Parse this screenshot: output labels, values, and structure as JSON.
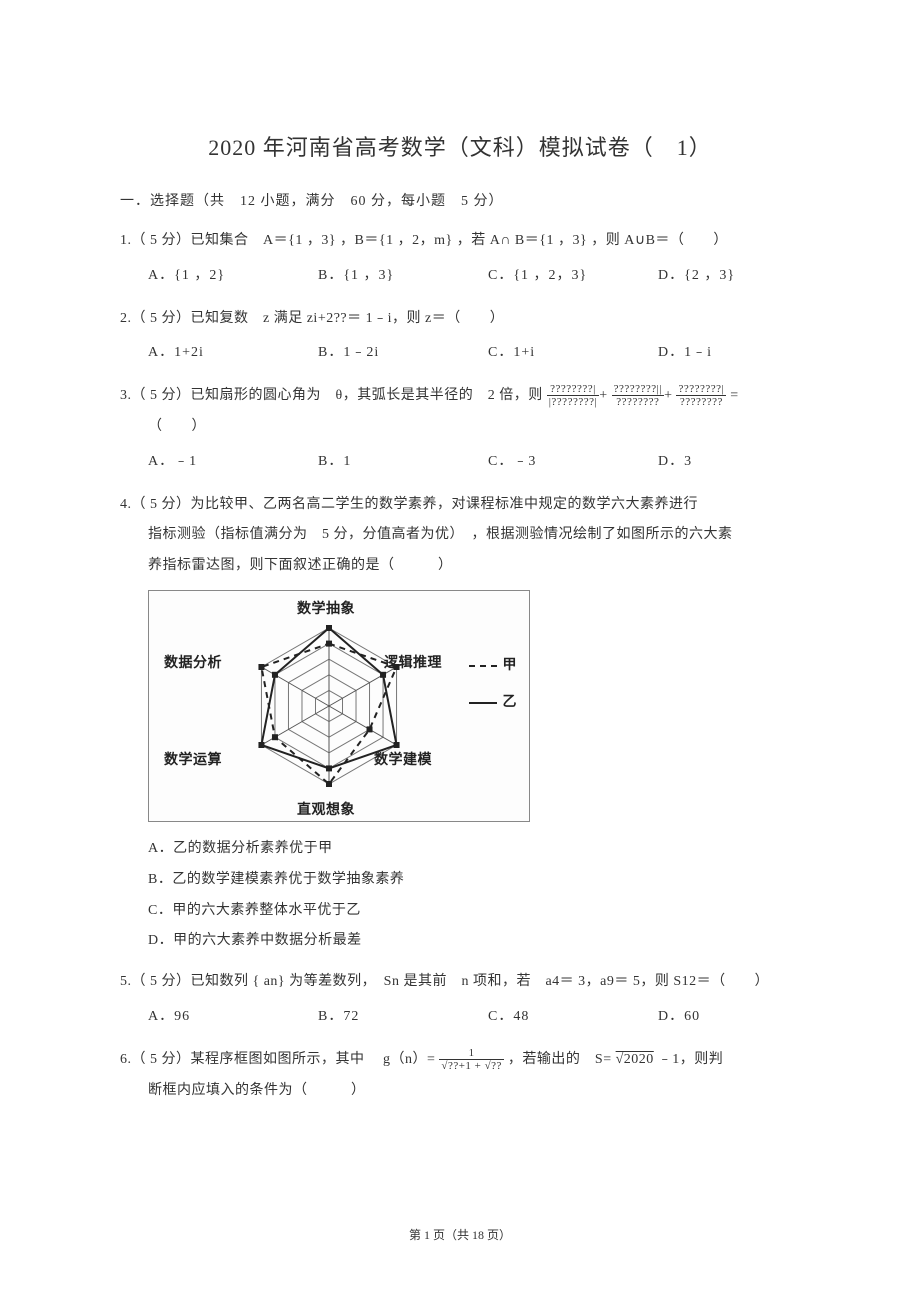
{
  "title": "2020 年河南省高考数学（文科）模拟试卷（　1）",
  "section1": "一．选择题（共　12 小题，满分　60 分，每小题　5 分）",
  "q1": {
    "stem": "1.（ 5 分）已知集合　A＝{1 ，3} ，B＝{1 ，2，m} ，若 A∩ B＝{1 ，3} ，则 A∪B＝（　　）",
    "A": "A．{1 ，2}",
    "B": "B．{1 ，3}",
    "C": "C．{1 ，2，3}",
    "D": "D．{2 ，3}"
  },
  "q2": {
    "stem": "2.（ 5 分）已知复数　z 满足 zi+2??＝ 1﹣i，则 z＝（　　）",
    "A": "A．1+2i",
    "B": "B．1﹣2i",
    "C": "C．1+i",
    "D": "D．1﹣i"
  },
  "q3": {
    "stem_pre": "3.（ 5 分）已知扇形的圆心角为　θ，其弧长是其半径的　2 倍，则",
    "frac1_num": "????????|",
    "frac1_den": "|????????|",
    "frac2_num": "????????||",
    "frac2_den": "????????",
    "frac3_num": "????????|",
    "frac3_den": "????????",
    "eq": "=",
    "stem_post": "（　　）",
    "A": "A．﹣1",
    "B": "B．1",
    "C": "C．﹣3",
    "D": "D．3"
  },
  "q4": {
    "line1": "4.（ 5 分）为比较甲、乙两名高二学生的数学素养，对课程标准中规定的数学六大素养进行",
    "line2": "指标测验（指标值满分为　5 分，分值高者为优）　，根据测验情况绘制了如图所示的六大素",
    "line3": "养指标雷达图，则下面叙述正确的是（　　　）",
    "radar": {
      "axes": [
        "数学抽象",
        "逻辑推理",
        "数学建模",
        "直观想象",
        "数学运算",
        "数据分析"
      ],
      "rings": 5,
      "jia_values": [
        4,
        5,
        3,
        5,
        4,
        5
      ],
      "yi_values": [
        5,
        4,
        5,
        4,
        5,
        4
      ],
      "colors": {
        "axis": "#555555",
        "jia": "#222222",
        "yi": "#222222",
        "ring": "#777777"
      },
      "legend": {
        "jia": "甲",
        "yi": "乙"
      }
    },
    "A": "A．乙的数据分析素养优于甲",
    "B": "B．乙的数学建模素养优于数学抽象素养",
    "C": "C．甲的六大素养整体水平优于乙",
    "D": "D．甲的六大素养中数据分析最差"
  },
  "q5": {
    "stem": "5.（ 5 分）已知数列 { an} 为等差数列，　Sn 是其前　n 项和，若　a4＝ 3，a9＝ 5，则 S12＝（　　）",
    "A": "A．96",
    "B": "B．72",
    "C": "C．48",
    "D": "D．60"
  },
  "q6": {
    "stem_pre": "6.（ 5 分）某程序框图如图所示，其中　 g（n）=",
    "frac_num": "1",
    "frac_den": "√??+1 + √??",
    "stem_mid": "，若输出的　S=",
    "sqrt": "√2020",
    "stem_post": "﹣1，则判",
    "line2": "断框内应填入的条件为（　　　）"
  },
  "footer": "第 1 页（共 18 页）"
}
